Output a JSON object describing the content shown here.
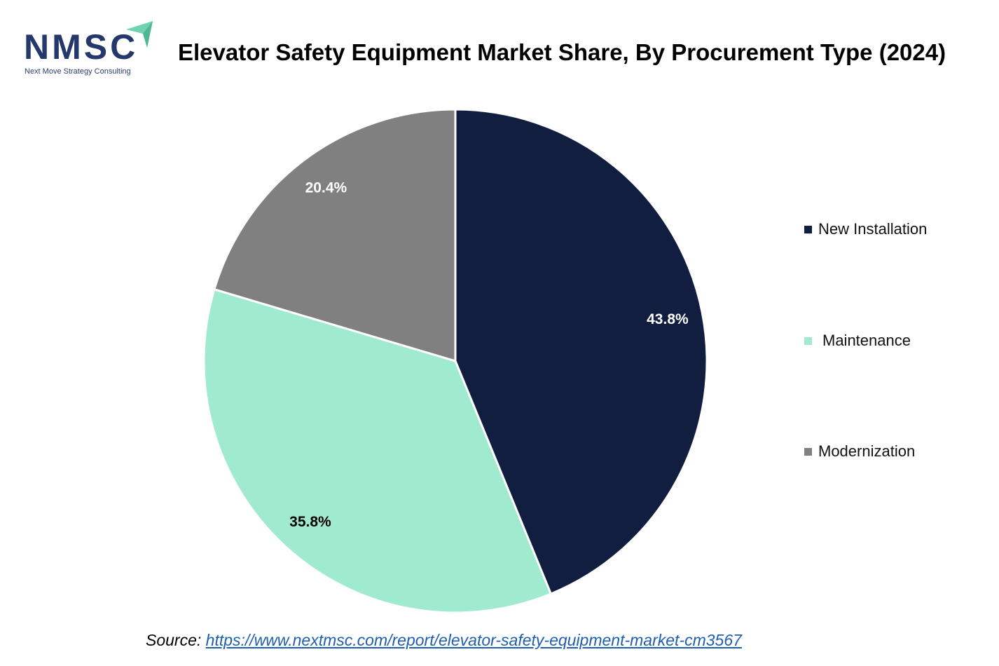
{
  "logo": {
    "name": "NMSC",
    "tagline": "Next Move Strategy Consulting",
    "primary_color": "#24386b",
    "accent_color": "#6fd3b0"
  },
  "chart_data": {
    "type": "pie",
    "title": "Elevator Safety Equipment Market Share, By Procurement Type (2024)",
    "categories": [
      "New Installation",
      "Maintenance",
      "Modernization"
    ],
    "values": [
      43.8,
      35.8,
      20.4
    ],
    "labels": [
      "43.8%",
      "35.8%",
      "20.4%"
    ],
    "colors": [
      "#111e40",
      "#a0ead0",
      "#808080"
    ],
    "label_colors": [
      "#ffffff",
      "#000000",
      "#ffffff"
    ],
    "start": "top",
    "direction": "clockwise",
    "legend_position": "right"
  },
  "source": {
    "prefix": "Source: ",
    "link": "https://www.nextmsc.com/report/elevator-safety-equipment-market-cm3567"
  }
}
